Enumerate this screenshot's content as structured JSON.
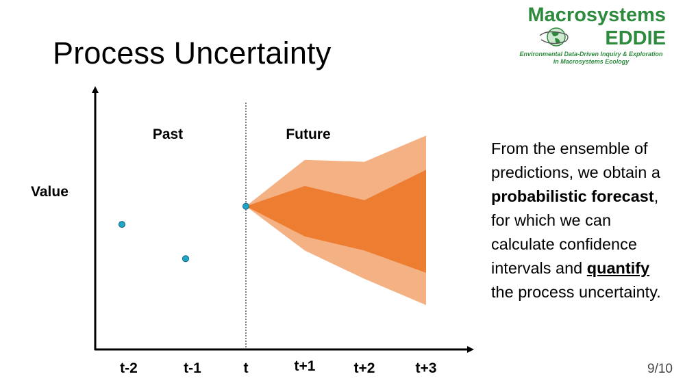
{
  "slide": {
    "title": "Process Uncertainty",
    "page_number": "9/10"
  },
  "logo": {
    "name": "Macrosystems",
    "name2": "EDDIE",
    "tagline1": "Environmental Data-Driven Inquiry & Exploration",
    "tagline2": "in Macrosystems Ecology",
    "color": "#2e8b3e"
  },
  "diagram": {
    "y_label": "Value",
    "past_label": "Past",
    "future_label": "Future",
    "x_ticks": [
      "t-2",
      "t-1",
      "t",
      "t+1",
      "t+2",
      "t+3"
    ],
    "points": [
      {
        "x": "t-2",
        "value": 0.62
      },
      {
        "x": "t-1",
        "value": 0.45
      },
      {
        "x": "t",
        "value": 0.71
      }
    ],
    "forecast": {
      "x": [
        "t",
        "t+1",
        "t+2",
        "t+3"
      ],
      "inner_upper": [
        0.71,
        0.81,
        0.74,
        0.89
      ],
      "inner_lower": [
        0.71,
        0.56,
        0.49,
        0.38
      ],
      "outer_upper": [
        0.71,
        0.94,
        0.93,
        1.06
      ],
      "outer_lower": [
        0.71,
        0.49,
        0.35,
        0.22
      ]
    },
    "colors": {
      "point_fill": "#1ea7c8",
      "inner_band": "#ed7d31",
      "outer_band": "#f4b183",
      "axis": "#000000"
    }
  },
  "text": {
    "p1": "From the ensemble of predictions, we obtain a ",
    "bold1": "probabilistic forecast",
    "p2": ", for which we can calculate confidence intervals and ",
    "bold2": "quantify",
    "p3": " the process uncertainty."
  }
}
